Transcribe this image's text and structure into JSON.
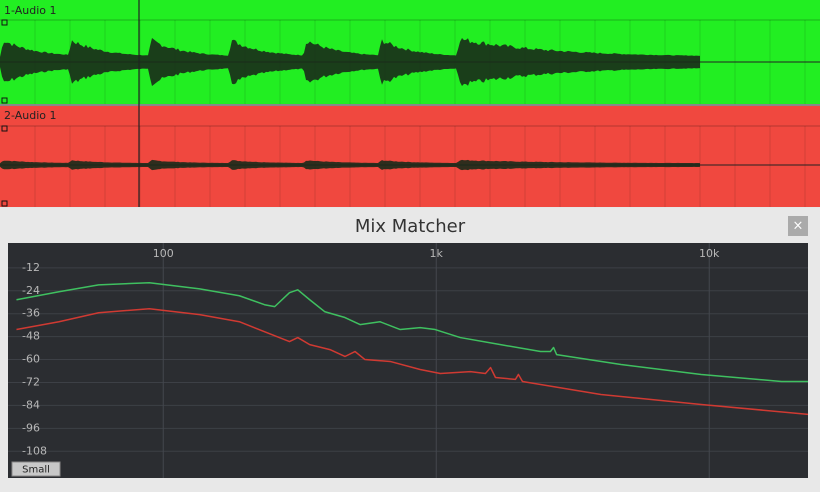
{
  "tracks": [
    {
      "name": "1-Audio 1",
      "color": "#22ee22"
    },
    {
      "name": "2-Audio 1",
      "color": "#f0483f"
    }
  ],
  "panel": {
    "title": "Mix Matcher",
    "close": "×",
    "button": "Small"
  },
  "chart_data": {
    "type": "line",
    "log_x": true,
    "grid": true,
    "xlim": [
      27,
      23000
    ],
    "ylim": [
      -122,
      1
    ],
    "xticks": [
      {
        "value": 100,
        "label": "100"
      },
      {
        "value": 1000,
        "label": "1k"
      },
      {
        "value": 10000,
        "label": "10k"
      }
    ],
    "yticks": [
      -12,
      -24,
      -36,
      -48,
      -60,
      -72,
      -84,
      -96,
      -108
    ],
    "series": [
      {
        "color": "#3fc060",
        "x": [
          29,
          41.5,
          58,
          89,
          136,
          190,
          235,
          256,
          290,
          311,
          344,
          391,
          463,
          526,
          622,
          738,
          873,
          991,
          1225,
          1720,
          2410,
          2620,
          2690,
          2760,
          4750,
          9350,
          18400,
          23000
        ],
        "values": [
          -28.7,
          -24.5,
          -20.9,
          -19.8,
          -23,
          -26.6,
          -31.3,
          -32.3,
          -25,
          -23.5,
          -28.7,
          -35,
          -38,
          -41.7,
          -40.2,
          -44.3,
          -43.3,
          -44.3,
          -48.5,
          -52.2,
          -55.8,
          -55.8,
          -53.7,
          -57.4,
          -62.6,
          -67.8,
          -71.5,
          -71.5
        ]
      },
      {
        "color": "#d03a32",
        "x": [
          29,
          41.5,
          58,
          89,
          136,
          190,
          290,
          311,
          344,
          408,
          463,
          504,
          548,
          678,
          873,
          1035,
          1334,
          1514,
          1581,
          1648,
          1950,
          2000,
          2070,
          4010,
          9350,
          23000
        ],
        "values": [
          -44.3,
          -40.2,
          -35.5,
          -33.4,
          -36.5,
          -40.2,
          -50.6,
          -48.5,
          -52.2,
          -54.8,
          -58.4,
          -55.8,
          -60,
          -61,
          -65.2,
          -67.3,
          -66.3,
          -67.3,
          -64.2,
          -69.4,
          -70.4,
          -67.8,
          -71.5,
          -78.3,
          -83.5,
          -88.7
        ]
      }
    ]
  }
}
